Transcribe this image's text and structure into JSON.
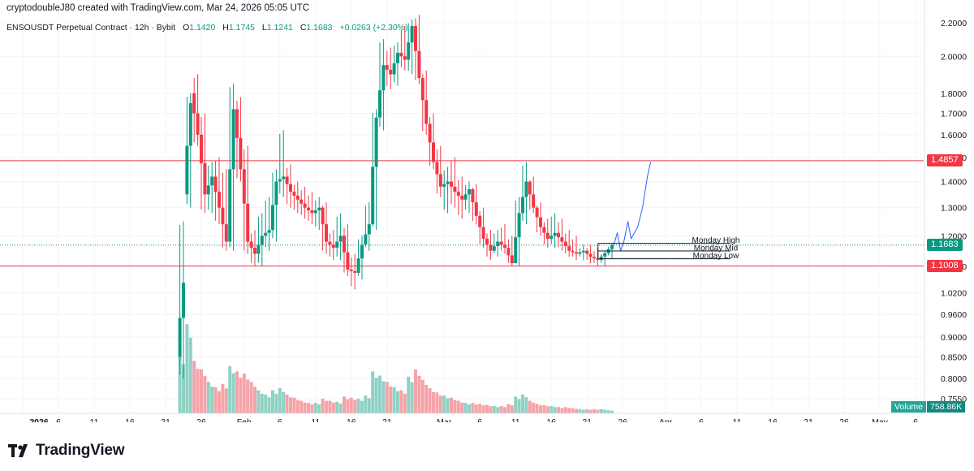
{
  "header": {
    "credit": "cryptodoubleJ80 created with TradingView.com, Mar 24, 2026 05:05 UTC"
  },
  "legend": {
    "symbol": "ENSOUSDT Perpetual Contract · 12h · Bybit",
    "open_label": "O",
    "open": "1.1420",
    "high_label": "H",
    "high": "1.1745",
    "low_label": "L",
    "low": "1.1241",
    "close_label": "C",
    "close": "1.1683",
    "change": "+0.0263 (+2.30%)"
  },
  "levels": {
    "resistance": {
      "value": 1.4857,
      "label": "1.4857"
    },
    "support": {
      "value": 1.1008,
      "label": "1.1008"
    },
    "last": {
      "value": 1.1683,
      "label": "1.1683"
    }
  },
  "annotations": {
    "monday_high": "Monday High",
    "monday_mid": "Monday Mid",
    "monday_low": "Monday Low"
  },
  "volume_badge": {
    "label": "Volume",
    "value": "758.86K"
  },
  "brand": {
    "name": "TradingView"
  },
  "colors": {
    "up": "#089981",
    "down": "#f23645",
    "vol_up": "#8fd1c4",
    "vol_down": "#f5a3a8",
    "level_line": "#f23645",
    "last_line": "#089981",
    "projection": "#2962ff"
  },
  "chart_data": {
    "type": "candlestick",
    "interval": "12h",
    "y_scale": "log",
    "y_ticks": [
      "0.7550",
      "0.8000",
      "0.8500",
      "0.9000",
      "0.9600",
      "1.0200",
      "1.1000",
      "1.2000",
      "1.3000",
      "1.4000",
      "1.5000",
      "1.6000",
      "1.7000",
      "1.8000",
      "2.0000",
      "2.2000"
    ],
    "x_ticks": [
      "2026",
      "6",
      "11",
      "16",
      "21",
      "26",
      "Feb",
      "6",
      "11",
      "16",
      "21",
      "Mar",
      "6",
      "11",
      "16",
      "21",
      "26",
      "Apr",
      "6",
      "11",
      "16",
      "21",
      "26",
      "May",
      "6"
    ],
    "x_tick_dates": [
      "2026-01-01",
      "2026-01-06",
      "2026-01-11",
      "2026-01-16",
      "2026-01-21",
      "2026-01-26",
      "2026-02-01",
      "2026-02-06",
      "2026-02-11",
      "2026-02-16",
      "2026-02-21",
      "2026-03-01",
      "2026-03-06",
      "2026-03-11",
      "2026-03-16",
      "2026-03-21",
      "2026-03-26",
      "2026-04-01",
      "2026-04-06",
      "2026-04-11",
      "2026-04-16",
      "2026-04-21",
      "2026-04-26",
      "2026-05-01",
      "2026-05-06"
    ],
    "daily": [
      {
        "date": "2026-01-23",
        "o": 0.85,
        "h": 1.25,
        "l": 0.8,
        "c": 1.05,
        "v": 0.55
      },
      {
        "date": "2026-01-24",
        "o": 1.35,
        "h": 1.8,
        "l": 1.3,
        "c": 1.75,
        "v": 0.85
      },
      {
        "date": "2026-01-25",
        "o": 1.8,
        "h": 1.9,
        "l": 1.55,
        "c": 1.6,
        "v": 0.5
      },
      {
        "date": "2026-01-26",
        "o": 1.6,
        "h": 1.7,
        "l": 1.28,
        "c": 1.35,
        "v": 0.42
      },
      {
        "date": "2026-01-27",
        "o": 1.35,
        "h": 1.48,
        "l": 1.28,
        "c": 1.42,
        "v": 0.3
      },
      {
        "date": "2026-01-28",
        "o": 1.42,
        "h": 1.5,
        "l": 1.24,
        "c": 1.3,
        "v": 0.25
      },
      {
        "date": "2026-01-29",
        "o": 1.3,
        "h": 1.45,
        "l": 1.15,
        "c": 1.18,
        "v": 0.28
      },
      {
        "date": "2026-01-30",
        "o": 1.18,
        "h": 1.85,
        "l": 1.15,
        "c": 1.72,
        "v": 0.45
      },
      {
        "date": "2026-01-31",
        "o": 1.72,
        "h": 1.78,
        "l": 1.4,
        "c": 1.45,
        "v": 0.4
      },
      {
        "date": "2026-02-01",
        "o": 1.45,
        "h": 1.55,
        "l": 1.14,
        "c": 1.18,
        "v": 0.38
      },
      {
        "date": "2026-02-02",
        "o": 1.18,
        "h": 1.22,
        "l": 1.1,
        "c": 1.14,
        "v": 0.3
      },
      {
        "date": "2026-02-03",
        "o": 1.14,
        "h": 1.28,
        "l": 1.1,
        "c": 1.2,
        "v": 0.22
      },
      {
        "date": "2026-02-04",
        "o": 1.2,
        "h": 1.34,
        "l": 1.15,
        "c": 1.22,
        "v": 0.18
      },
      {
        "date": "2026-02-05",
        "o": 1.22,
        "h": 1.45,
        "l": 1.18,
        "c": 1.4,
        "v": 0.22
      },
      {
        "date": "2026-02-06",
        "o": 1.4,
        "h": 1.62,
        "l": 1.34,
        "c": 1.42,
        "v": 0.24
      },
      {
        "date": "2026-02-07",
        "o": 1.42,
        "h": 1.47,
        "l": 1.3,
        "c": 1.36,
        "v": 0.18
      },
      {
        "date": "2026-02-08",
        "o": 1.36,
        "h": 1.4,
        "l": 1.28,
        "c": 1.33,
        "v": 0.15
      },
      {
        "date": "2026-02-09",
        "o": 1.33,
        "h": 1.38,
        "l": 1.26,
        "c": 1.3,
        "v": 0.12
      },
      {
        "date": "2026-02-10",
        "o": 1.3,
        "h": 1.36,
        "l": 1.24,
        "c": 1.28,
        "v": 0.1
      },
      {
        "date": "2026-02-11",
        "o": 1.28,
        "h": 1.34,
        "l": 1.22,
        "c": 1.3,
        "v": 0.1
      },
      {
        "date": "2026-02-12",
        "o": 1.3,
        "h": 1.32,
        "l": 1.14,
        "c": 1.18,
        "v": 0.14
      },
      {
        "date": "2026-02-13",
        "o": 1.18,
        "h": 1.22,
        "l": 1.12,
        "c": 1.16,
        "v": 0.12
      },
      {
        "date": "2026-02-14",
        "o": 1.16,
        "h": 1.28,
        "l": 1.12,
        "c": 1.2,
        "v": 0.11
      },
      {
        "date": "2026-02-15",
        "o": 1.2,
        "h": 1.24,
        "l": 1.07,
        "c": 1.09,
        "v": 0.16
      },
      {
        "date": "2026-02-16",
        "o": 1.09,
        "h": 1.14,
        "l": 1.03,
        "c": 1.08,
        "v": 0.15
      },
      {
        "date": "2026-02-17",
        "o": 1.08,
        "h": 1.2,
        "l": 1.06,
        "c": 1.17,
        "v": 0.14
      },
      {
        "date": "2026-02-18",
        "o": 1.17,
        "h": 1.32,
        "l": 1.15,
        "c": 1.24,
        "v": 0.17
      },
      {
        "date": "2026-02-19",
        "o": 1.24,
        "h": 1.72,
        "l": 1.22,
        "c": 1.68,
        "v": 0.4
      },
      {
        "date": "2026-02-20",
        "o": 1.68,
        "h": 2.1,
        "l": 1.62,
        "c": 1.95,
        "v": 0.36
      },
      {
        "date": "2026-02-21",
        "o": 1.95,
        "h": 2.05,
        "l": 1.82,
        "c": 1.9,
        "v": 0.3
      },
      {
        "date": "2026-02-22",
        "o": 1.9,
        "h": 2.08,
        "l": 1.84,
        "c": 2.02,
        "v": 0.25
      },
      {
        "date": "2026-02-23",
        "o": 2.02,
        "h": 2.18,
        "l": 1.92,
        "c": 1.98,
        "v": 0.22
      },
      {
        "date": "2026-02-24",
        "o": 1.98,
        "h": 2.22,
        "l": 1.9,
        "c": 2.18,
        "v": 0.35
      },
      {
        "date": "2026-02-25",
        "o": 2.18,
        "h": 2.25,
        "l": 1.85,
        "c": 1.88,
        "v": 0.42
      },
      {
        "date": "2026-02-26",
        "o": 1.88,
        "h": 1.92,
        "l": 1.6,
        "c": 1.65,
        "v": 0.32
      },
      {
        "date": "2026-02-27",
        "o": 1.65,
        "h": 1.7,
        "l": 1.45,
        "c": 1.48,
        "v": 0.24
      },
      {
        "date": "2026-02-28",
        "o": 1.48,
        "h": 1.55,
        "l": 1.34,
        "c": 1.38,
        "v": 0.2
      },
      {
        "date": "2026-03-01",
        "o": 1.38,
        "h": 1.46,
        "l": 1.28,
        "c": 1.4,
        "v": 0.17
      },
      {
        "date": "2026-03-02",
        "o": 1.4,
        "h": 1.5,
        "l": 1.3,
        "c": 1.36,
        "v": 0.15
      },
      {
        "date": "2026-03-03",
        "o": 1.36,
        "h": 1.42,
        "l": 1.26,
        "c": 1.33,
        "v": 0.12
      },
      {
        "date": "2026-03-04",
        "o": 1.33,
        "h": 1.4,
        "l": 1.28,
        "c": 1.37,
        "v": 0.1
      },
      {
        "date": "2026-03-05",
        "o": 1.37,
        "h": 1.39,
        "l": 1.24,
        "c": 1.27,
        "v": 0.1
      },
      {
        "date": "2026-03-06",
        "o": 1.27,
        "h": 1.3,
        "l": 1.16,
        "c": 1.19,
        "v": 0.09
      },
      {
        "date": "2026-03-07",
        "o": 1.19,
        "h": 1.22,
        "l": 1.12,
        "c": 1.15,
        "v": 0.08
      },
      {
        "date": "2026-03-08",
        "o": 1.15,
        "h": 1.22,
        "l": 1.13,
        "c": 1.18,
        "v": 0.07
      },
      {
        "date": "2026-03-09",
        "o": 1.18,
        "h": 1.24,
        "l": 1.14,
        "c": 1.16,
        "v": 0.07
      },
      {
        "date": "2026-03-10",
        "o": 1.16,
        "h": 1.2,
        "l": 1.1,
        "c": 1.11,
        "v": 0.09
      },
      {
        "date": "2026-03-11",
        "o": 1.11,
        "h": 1.34,
        "l": 1.1,
        "c": 1.28,
        "v": 0.16
      },
      {
        "date": "2026-03-12",
        "o": 1.28,
        "h": 1.48,
        "l": 1.24,
        "c": 1.4,
        "v": 0.18
      },
      {
        "date": "2026-03-13",
        "o": 1.4,
        "h": 1.42,
        "l": 1.28,
        "c": 1.3,
        "v": 0.12
      },
      {
        "date": "2026-03-14",
        "o": 1.3,
        "h": 1.32,
        "l": 1.2,
        "c": 1.23,
        "v": 0.09
      },
      {
        "date": "2026-03-15",
        "o": 1.23,
        "h": 1.26,
        "l": 1.16,
        "c": 1.19,
        "v": 0.08
      },
      {
        "date": "2026-03-16",
        "o": 1.19,
        "h": 1.28,
        "l": 1.16,
        "c": 1.21,
        "v": 0.07
      },
      {
        "date": "2026-03-17",
        "o": 1.21,
        "h": 1.26,
        "l": 1.15,
        "c": 1.18,
        "v": 0.06
      },
      {
        "date": "2026-03-18",
        "o": 1.18,
        "h": 1.22,
        "l": 1.13,
        "c": 1.15,
        "v": 0.06
      },
      {
        "date": "2026-03-19",
        "o": 1.15,
        "h": 1.2,
        "l": 1.12,
        "c": 1.14,
        "v": 0.05
      },
      {
        "date": "2026-03-20",
        "o": 1.14,
        "h": 1.17,
        "l": 1.12,
        "c": 1.15,
        "v": 0.04
      },
      {
        "date": "2026-03-21",
        "o": 1.15,
        "h": 1.17,
        "l": 1.11,
        "c": 1.13,
        "v": 0.04
      },
      {
        "date": "2026-03-22",
        "o": 1.13,
        "h": 1.16,
        "l": 1.1,
        "c": 1.12,
        "v": 0.04
      },
      {
        "date": "2026-03-23",
        "o": 1.12,
        "h": 1.15,
        "l": 1.1,
        "c": 1.142,
        "v": 0.04
      },
      {
        "date": "2026-03-24",
        "o": 1.142,
        "h": 1.1745,
        "l": 1.1241,
        "c": 1.1683,
        "v": 0.03
      }
    ]
  }
}
